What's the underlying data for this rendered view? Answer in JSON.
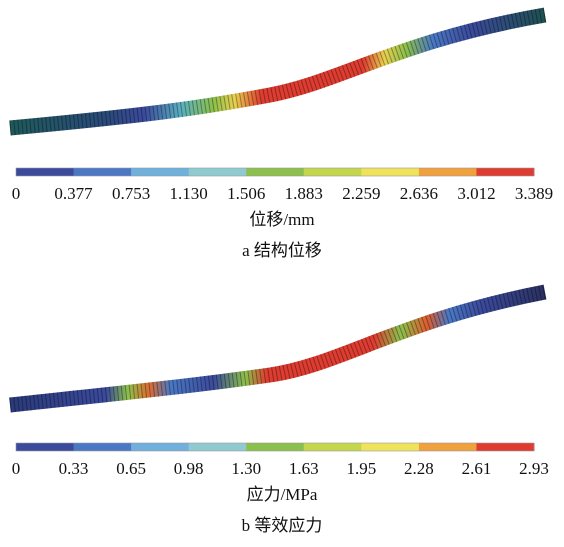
{
  "panels": [
    {
      "ticks": [
        "0",
        "0.377",
        "0.753",
        "1.130",
        "1.506",
        "1.883",
        "2.259",
        "2.636",
        "3.012",
        "3.389"
      ],
      "unit": "位移/mm",
      "caption": "a  结构位移"
    },
    {
      "ticks": [
        "0",
        "0.33",
        "0.65",
        "0.98",
        "1.30",
        "1.63",
        "1.95",
        "2.28",
        "2.61",
        "2.93"
      ],
      "unit": "应力/MPa",
      "caption": "b  等效应力"
    }
  ],
  "colors": [
    "#3b4a9c",
    "#4a78c4",
    "#6fb0dc",
    "#8fcad0",
    "#8cc04c",
    "#c4d64c",
    "#f0e35c",
    "#f0a03c",
    "#de3c30"
  ]
}
